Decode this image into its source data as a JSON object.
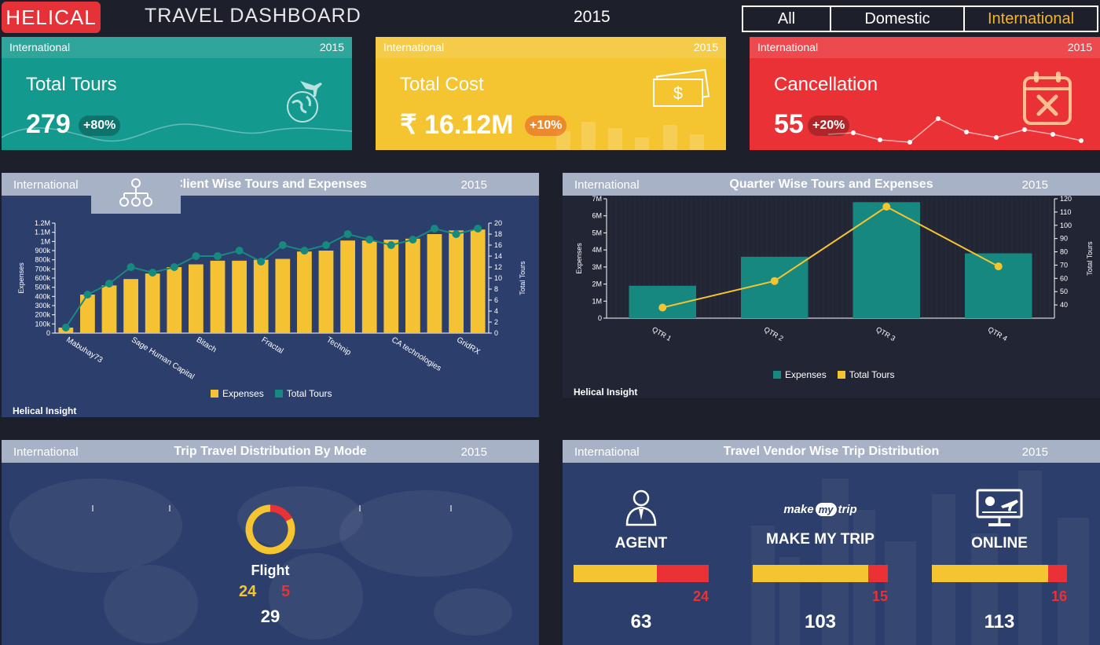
{
  "header": {
    "logo": "HELICAL",
    "title": "TRAVEL DASHBOARD",
    "year": "2015",
    "tabs": [
      {
        "label": "All",
        "active": false
      },
      {
        "label": "Domestic",
        "active": false
      },
      {
        "label": "International",
        "active": true
      }
    ]
  },
  "colors": {
    "teal": "#14998f",
    "yellow": "#f4c431",
    "red": "#ea3236",
    "panel": "#2c3e6b",
    "panel_head": "#a8b2c6",
    "bar_yellow": "#f5c233",
    "line_teal": "#178a80",
    "bar_teal": "#16887f",
    "line_yellow": "#f3c530"
  },
  "kpis": [
    {
      "context": "International",
      "year": "2015",
      "label": "Total Tours",
      "value": "279",
      "badge": "+80%",
      "icon": "globe-plane-icon"
    },
    {
      "context": "International",
      "year": "2015",
      "label": "Total Cost",
      "value": "₹ 16.12M",
      "badge": "+10%",
      "icon": "banknotes-icon"
    },
    {
      "context": "International",
      "year": "2015",
      "label": "Cancellation",
      "value": "55",
      "badge": "+20%",
      "icon": "calendar-cancel-icon"
    }
  ],
  "panels": {
    "client": {
      "context": "International",
      "title": "Client Wise Tours and Expenses",
      "year": "2015",
      "brand": "Helical Insight",
      "icon": "hierarchy-icon"
    },
    "quarter": {
      "context": "International",
      "title": "Quarter Wise Tours and Expenses",
      "year": "2015",
      "brand": "Helical Insight"
    },
    "mode": {
      "context": "International",
      "title": "Trip Travel Distribution By Mode",
      "year": "2015",
      "mode_label": "Flight",
      "completed": "24",
      "cancelled": "5",
      "total": "29"
    },
    "vendor": {
      "context": "International",
      "title": "Travel Vendor Wise Trip Distribution",
      "year": "2015",
      "vendors": [
        {
          "name": "AGENT",
          "cancelled": "24",
          "total": "63",
          "icon": "agent-icon"
        },
        {
          "name": "MAKE MY TRIP",
          "cancelled": "15",
          "total": "103",
          "icon": "makemytrip-logo-icon",
          "logo_text_1": "make",
          "logo_text_2": "my",
          "logo_text_3": "trip"
        },
        {
          "name": "ONLINE",
          "cancelled": "16",
          "total": "113",
          "icon": "online-booking-icon"
        }
      ]
    }
  },
  "chart_data": [
    {
      "type": "bar",
      "title": "Client Wise Tours and Expenses",
      "xlabel": "",
      "ylabel": "Expenses",
      "y2label": "Total Tours",
      "ylim": [
        0,
        1200000
      ],
      "y2lim": [
        0,
        20
      ],
      "yticks": [
        "0",
        "100k",
        "200k",
        "300k",
        "400k",
        "500k",
        "600k",
        "700k",
        "800k",
        "900k",
        "1M",
        "1.1M",
        "1.2M"
      ],
      "y2ticks": [
        "0",
        "2",
        "4",
        "6",
        "8",
        "10",
        "12",
        "14",
        "16",
        "18",
        "20"
      ],
      "category_labels": [
        "Mabuhay73",
        "Sage Human Capital",
        "Bitach",
        "Fractal",
        "Technip",
        "CA technologies",
        "GridRX"
      ],
      "series": [
        {
          "name": "Expenses",
          "kind": "bar",
          "values": [
            60000,
            420000,
            520000,
            590000,
            650000,
            720000,
            750000,
            790000,
            790000,
            800000,
            810000,
            890000,
            900000,
            1010000,
            1010000,
            1020000,
            1030000,
            1080000,
            1120000,
            1130000
          ]
        },
        {
          "name": "Total Tours",
          "kind": "line",
          "values": [
            1,
            7,
            9,
            12,
            11,
            12,
            14,
            14,
            15,
            13,
            16,
            15,
            16,
            18,
            17,
            16,
            17,
            19,
            18,
            19
          ]
        }
      ],
      "legend": "bottom"
    },
    {
      "type": "bar",
      "title": "Quarter Wise Tours and Expenses",
      "ylabel": "Expenses",
      "y2label": "Total Tours",
      "ylim": [
        0,
        7000000
      ],
      "y2lim": [
        30,
        120
      ],
      "yticks": [
        "0",
        "1M",
        "2M",
        "3M",
        "4M",
        "5M",
        "6M",
        "7M"
      ],
      "y2ticks": [
        "40",
        "50",
        "60",
        "70",
        "80",
        "90",
        "100",
        "110",
        "120"
      ],
      "categories": [
        "QTR 1",
        "QTR 2",
        "QTR 3",
        "QTR 4"
      ],
      "series": [
        {
          "name": "Expenses",
          "kind": "bar",
          "values": [
            1900000,
            3600000,
            6800000,
            3800000
          ]
        },
        {
          "name": "Total Tours",
          "kind": "line",
          "values": [
            38,
            58,
            114,
            69
          ]
        }
      ],
      "legend": "bottom"
    },
    {
      "type": "pie",
      "title": "Trip Travel Distribution By Mode",
      "categories": [
        "Flight completed",
        "Flight cancelled"
      ],
      "values": [
        24,
        5
      ]
    }
  ]
}
